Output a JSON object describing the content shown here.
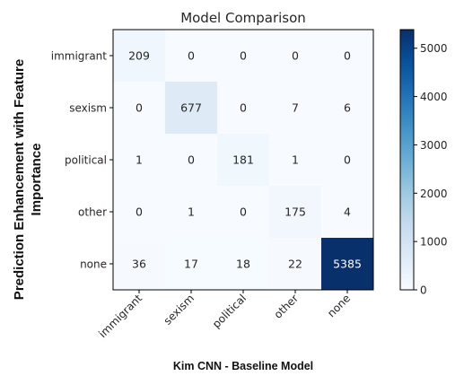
{
  "chart_data": {
    "type": "heatmap",
    "title": "Model Comparison",
    "xlabel": "Kim CNN - Baseline Model",
    "ylabel": "Prediction Enhancement with Feature Importance",
    "x_categories": [
      "immigrant",
      "sexism",
      "political",
      "other",
      "none"
    ],
    "y_categories": [
      "immigrant",
      "sexism",
      "political",
      "other",
      "none"
    ],
    "values": [
      [
        209,
        0,
        0,
        0,
        0
      ],
      [
        0,
        677,
        0,
        7,
        6
      ],
      [
        1,
        0,
        181,
        1,
        0
      ],
      [
        0,
        1,
        0,
        175,
        4
      ],
      [
        36,
        17,
        18,
        22,
        5385
      ]
    ],
    "colormap": "Blues",
    "color_range": [
      0,
      5385
    ],
    "colorbar_ticks": [
      0,
      1000,
      2000,
      3000,
      4000,
      5000
    ],
    "grid": false,
    "colors": {
      "low": "#f7fbff",
      "high": "#08306b"
    }
  }
}
